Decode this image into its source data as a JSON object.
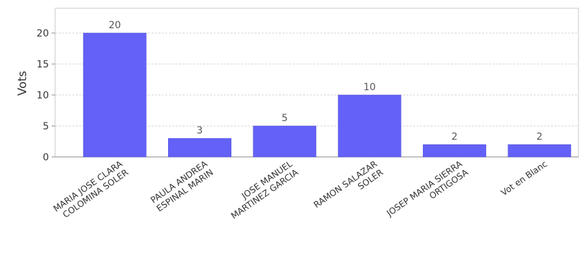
{
  "chart_data": {
    "type": "bar",
    "title": "",
    "xlabel": "",
    "ylabel": "Vots",
    "ylim": [
      0,
      24
    ],
    "yticks": [
      0,
      5,
      10,
      15,
      20
    ],
    "grid": true,
    "bar_color": "#6361f7",
    "categories": [
      [
        "MARIA JOSE CLARA",
        "COLOMINA SOLER"
      ],
      [
        "PAULA ANDREA",
        "ESPINAL MARIN"
      ],
      [
        "JOSE MANUEL",
        "MARTINEZ GARCIA"
      ],
      [
        "RAMON SALAZAR",
        "SOLER"
      ],
      [
        "JOSEP MARIA SIERRA",
        "ORTIGOSA"
      ],
      [
        "Vot en Blanc"
      ]
    ],
    "values": [
      20,
      3,
      5,
      10,
      2,
      2
    ]
  }
}
